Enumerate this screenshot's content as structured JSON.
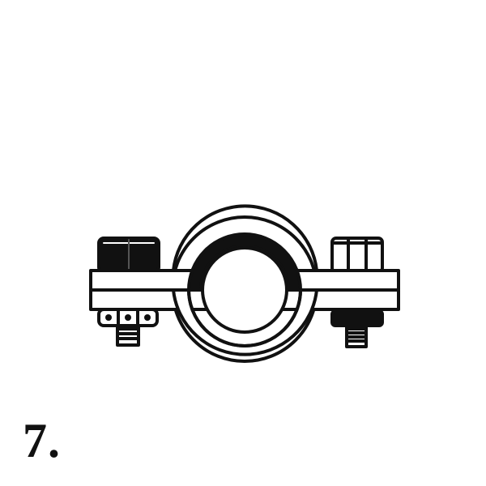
{
  "figure": {
    "number_label": "7.",
    "subject_icon": "pipe-clamp-icon",
    "ink_color": "#111111",
    "paper_color": "#ffffff"
  }
}
